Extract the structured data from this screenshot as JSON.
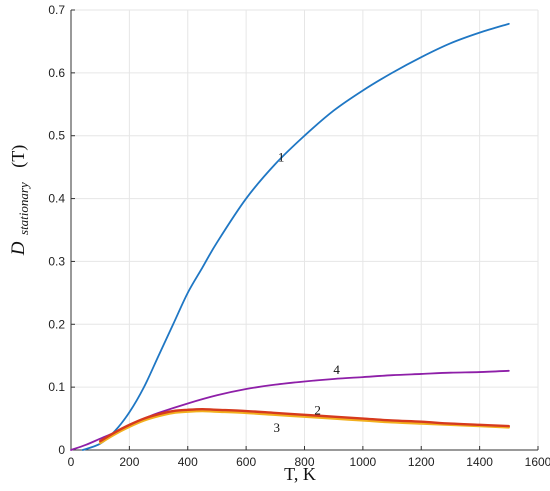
{
  "chart_data": {
    "type": "line",
    "xlabel": "T, K",
    "ylabel": {
      "main": "D",
      "subscript": "stationary",
      "suffix": "(T)"
    },
    "xlim": [
      0,
      1600
    ],
    "ylim": [
      0,
      0.7
    ],
    "xticks": [
      "0",
      "200",
      "400",
      "600",
      "800",
      "1000",
      "1200",
      "1400",
      "1600"
    ],
    "yticks": [
      "0",
      "0.1",
      "0.2",
      "0.3",
      "0.4",
      "0.5",
      "0.6",
      "0.7"
    ],
    "grid": true,
    "series": [
      {
        "name": "1",
        "color": "#1f77c4",
        "x": [
          40,
          100,
          150,
          200,
          250,
          300,
          350,
          400,
          450,
          500,
          600,
          700,
          800,
          900,
          1000,
          1100,
          1200,
          1300,
          1400,
          1500
        ],
        "y": [
          0.0,
          0.01,
          0.03,
          0.06,
          0.1,
          0.15,
          0.2,
          0.25,
          0.29,
          0.33,
          0.4,
          0.455,
          0.5,
          0.54,
          0.572,
          0.6,
          0.625,
          0.647,
          0.664,
          0.678
        ],
        "label_at": [
          720,
          0.465
        ]
      },
      {
        "name": "4",
        "color": "#8e1fa8",
        "x": [
          0,
          50,
          100,
          150,
          200,
          250,
          300,
          400,
          500,
          600,
          700,
          800,
          900,
          1000,
          1100,
          1200,
          1300,
          1400,
          1500
        ],
        "y": [
          0.0,
          0.008,
          0.018,
          0.028,
          0.04,
          0.05,
          0.059,
          0.074,
          0.087,
          0.097,
          0.104,
          0.109,
          0.113,
          0.116,
          0.119,
          0.121,
          0.123,
          0.124,
          0.126
        ],
        "label_at": [
          910,
          0.127
        ]
      },
      {
        "name": "2",
        "color": "#d63a1e",
        "x": [
          100,
          150,
          200,
          250,
          300,
          350,
          400,
          450,
          500,
          600,
          700,
          800,
          900,
          1000,
          1100,
          1200,
          1300,
          1400,
          1500
        ],
        "y": [
          0.014,
          0.028,
          0.04,
          0.05,
          0.057,
          0.062,
          0.064,
          0.065,
          0.064,
          0.062,
          0.059,
          0.056,
          0.053,
          0.05,
          0.047,
          0.045,
          0.042,
          0.04,
          0.038
        ],
        "label_at": [
          845,
          0.063
        ]
      },
      {
        "name": "3",
        "color": "#f2b01e",
        "x": [
          100,
          150,
          200,
          250,
          300,
          350,
          400,
          450,
          500,
          600,
          700,
          800,
          900,
          1000,
          1100,
          1200,
          1300,
          1400,
          1500
        ],
        "y": [
          0.011,
          0.025,
          0.037,
          0.047,
          0.054,
          0.059,
          0.061,
          0.062,
          0.061,
          0.059,
          0.056,
          0.053,
          0.05,
          0.047,
          0.044,
          0.042,
          0.04,
          0.038,
          0.036
        ],
        "label_at": [
          705,
          0.035
        ]
      }
    ]
  }
}
